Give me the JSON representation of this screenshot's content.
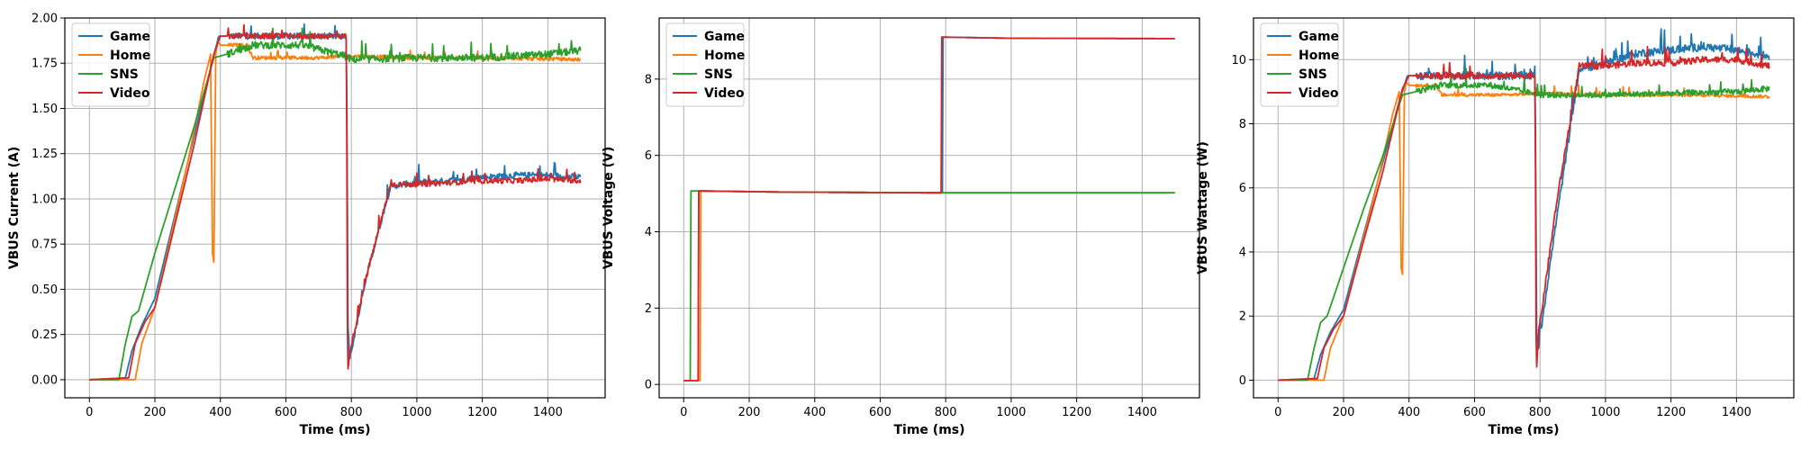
{
  "chart_data": [
    {
      "type": "line",
      "id": "current",
      "xlabel": "Time (ms)",
      "ylabel": "VBUS Current (A)",
      "xlim": [
        -75,
        1575
      ],
      "ylim": [
        -0.1,
        2.0
      ],
      "xticks": [
        0,
        200,
        400,
        600,
        800,
        1000,
        1200,
        1400
      ],
      "yticks": [
        0.0,
        0.25,
        0.5,
        0.75,
        1.0,
        1.25,
        1.5,
        1.75,
        2.0
      ],
      "ytick_labels": [
        "0.00",
        "0.25",
        "0.50",
        "0.75",
        "1.00",
        "1.25",
        "1.50",
        "1.75",
        "2.00"
      ],
      "grid": true,
      "legend": "top-left",
      "series": [
        {
          "name": "Game",
          "color": "#1f77b4",
          "noise_after": 0.035,
          "x": [
            0,
            110,
            130,
            160,
            200,
            260,
            320,
            370,
            395,
            780,
            785,
            790,
            795,
            850,
            920,
            1000,
            1100,
            1200,
            1300,
            1400,
            1500
          ],
          "y": [
            0.0,
            0.01,
            0.16,
            0.3,
            0.45,
            0.9,
            1.35,
            1.72,
            1.9,
            1.9,
            1.9,
            0.3,
            0.12,
            0.6,
            1.07,
            1.09,
            1.1,
            1.12,
            1.13,
            1.13,
            1.12
          ]
        },
        {
          "name": "Home",
          "color": "#ff7f0e",
          "noise_after": 0.02,
          "x": [
            0,
            140,
            160,
            200,
            250,
            300,
            350,
            370,
            376,
            380,
            386,
            392,
            400,
            480,
            500,
            700,
            800,
            1000,
            1200,
            1500
          ],
          "y": [
            0.0,
            0.0,
            0.2,
            0.4,
            0.8,
            1.2,
            1.65,
            1.8,
            0.7,
            0.65,
            1.8,
            1.87,
            1.85,
            1.85,
            1.78,
            1.78,
            1.79,
            1.78,
            1.78,
            1.77
          ]
        },
        {
          "name": "SNS",
          "color": "#2ca02c",
          "noise_after": 0.04,
          "x": [
            0,
            90,
            110,
            130,
            150,
            200,
            260,
            320,
            380,
            420,
            500,
            650,
            780,
            800,
            1000,
            1200,
            1400,
            1500
          ],
          "y": [
            0.0,
            0.0,
            0.2,
            0.35,
            0.38,
            0.7,
            1.05,
            1.4,
            1.78,
            1.8,
            1.85,
            1.85,
            1.79,
            1.77,
            1.78,
            1.78,
            1.8,
            1.82
          ]
        },
        {
          "name": "Video",
          "color": "#d62728",
          "noise_after": 0.03,
          "x": [
            0,
            120,
            140,
            170,
            200,
            260,
            320,
            380,
            400,
            700,
            785,
            788,
            790,
            795,
            850,
            920,
            1000,
            1100,
            1200,
            1300,
            1400,
            1500
          ],
          "y": [
            0.0,
            0.01,
            0.2,
            0.32,
            0.4,
            0.85,
            1.3,
            1.8,
            1.9,
            1.9,
            1.9,
            0.3,
            0.05,
            0.15,
            0.6,
            1.08,
            1.08,
            1.09,
            1.1,
            1.1,
            1.11,
            1.1
          ]
        }
      ]
    },
    {
      "type": "line",
      "id": "voltage",
      "xlabel": "Time (ms)",
      "ylabel": "VBUS Voltage (V)",
      "xlim": [
        -75,
        1575
      ],
      "ylim": [
        -0.35,
        9.6
      ],
      "xticks": [
        0,
        200,
        400,
        600,
        800,
        1000,
        1200,
        1400
      ],
      "yticks": [
        0,
        2,
        4,
        6,
        8
      ],
      "ytick_labels": [
        "0",
        "2",
        "4",
        "6",
        "8"
      ],
      "grid": true,
      "legend": "top-left",
      "series": [
        {
          "name": "Game",
          "color": "#1f77b4",
          "noise_after": 0,
          "x": [
            0,
            45,
            46,
            300,
            780,
            790,
            791,
            1000,
            1500
          ],
          "y": [
            0.1,
            0.1,
            5.07,
            5.04,
            5.02,
            5.02,
            9.1,
            9.07,
            9.06
          ]
        },
        {
          "name": "Home",
          "color": "#ff7f0e",
          "noise_after": 0,
          "x": [
            0,
            50,
            51,
            300,
            800,
            1500
          ],
          "y": [
            0.1,
            0.1,
            5.07,
            5.04,
            5.02,
            5.02
          ]
        },
        {
          "name": "SNS",
          "color": "#2ca02c",
          "noise_after": 0,
          "x": [
            0,
            20,
            21,
            300,
            800,
            1500
          ],
          "y": [
            0.1,
            0.1,
            5.07,
            5.04,
            5.02,
            5.02
          ]
        },
        {
          "name": "Video",
          "color": "#d62728",
          "noise_after": 0,
          "x": [
            0,
            45,
            46,
            300,
            780,
            786,
            787,
            1000,
            1500
          ],
          "y": [
            0.1,
            0.1,
            5.07,
            5.04,
            5.02,
            5.02,
            9.1,
            9.07,
            9.06
          ]
        }
      ]
    },
    {
      "type": "line",
      "id": "wattage",
      "xlabel": "Time (ms)",
      "ylabel": "VBUS Wattage (W)",
      "xlim": [
        -75,
        1575
      ],
      "ylim": [
        -0.55,
        11.3
      ],
      "xticks": [
        0,
        200,
        400,
        600,
        800,
        1000,
        1200,
        1400
      ],
      "yticks": [
        0,
        2,
        4,
        6,
        8,
        10
      ],
      "ytick_labels": [
        "0",
        "2",
        "4",
        "6",
        "8",
        "10"
      ],
      "grid": true,
      "legend": "top-left",
      "series": [
        {
          "name": "Game",
          "color": "#1f77b4",
          "noise_after": 0.25,
          "x": [
            0,
            110,
            130,
            160,
            200,
            260,
            320,
            370,
            395,
            780,
            785,
            790,
            795,
            850,
            920,
            1000,
            1100,
            1200,
            1300,
            1400,
            1500
          ],
          "y": [
            0.0,
            0.05,
            0.8,
            1.5,
            2.2,
            4.5,
            6.8,
            8.7,
            9.5,
            9.5,
            9.5,
            1.5,
            1.0,
            5.0,
            9.7,
            9.9,
            10.2,
            10.3,
            10.4,
            10.3,
            10.1
          ]
        },
        {
          "name": "Home",
          "color": "#ff7f0e",
          "noise_after": 0.1,
          "x": [
            0,
            140,
            160,
            200,
            250,
            300,
            350,
            370,
            376,
            380,
            386,
            392,
            400,
            480,
            500,
            700,
            800,
            1000,
            1200,
            1500
          ],
          "y": [
            0.0,
            0.0,
            1.0,
            2.0,
            4.0,
            6.0,
            8.3,
            9.0,
            3.5,
            3.3,
            9.0,
            9.3,
            9.2,
            9.2,
            8.9,
            8.9,
            8.95,
            8.9,
            8.9,
            8.85
          ]
        },
        {
          "name": "SNS",
          "color": "#2ca02c",
          "noise_after": 0.18,
          "x": [
            0,
            90,
            110,
            130,
            150,
            200,
            260,
            320,
            380,
            420,
            500,
            650,
            780,
            800,
            1000,
            1200,
            1400,
            1500
          ],
          "y": [
            0.0,
            0.0,
            1.0,
            1.8,
            2.0,
            3.5,
            5.3,
            7.0,
            8.9,
            9.0,
            9.2,
            9.2,
            8.95,
            8.9,
            8.9,
            8.95,
            9.0,
            9.1
          ]
        },
        {
          "name": "Video",
          "color": "#d62728",
          "noise_after": 0.2,
          "x": [
            0,
            120,
            140,
            170,
            200,
            260,
            320,
            380,
            400,
            700,
            785,
            788,
            790,
            795,
            850,
            920,
            1000,
            1100,
            1200,
            1300,
            1400,
            1500
          ],
          "y": [
            0.0,
            0.05,
            1.0,
            1.6,
            2.0,
            4.3,
            6.5,
            9.1,
            9.5,
            9.5,
            9.5,
            1.5,
            0.4,
            1.4,
            5.5,
            9.8,
            9.8,
            9.9,
            9.9,
            10.0,
            10.0,
            9.8
          ]
        }
      ]
    }
  ]
}
